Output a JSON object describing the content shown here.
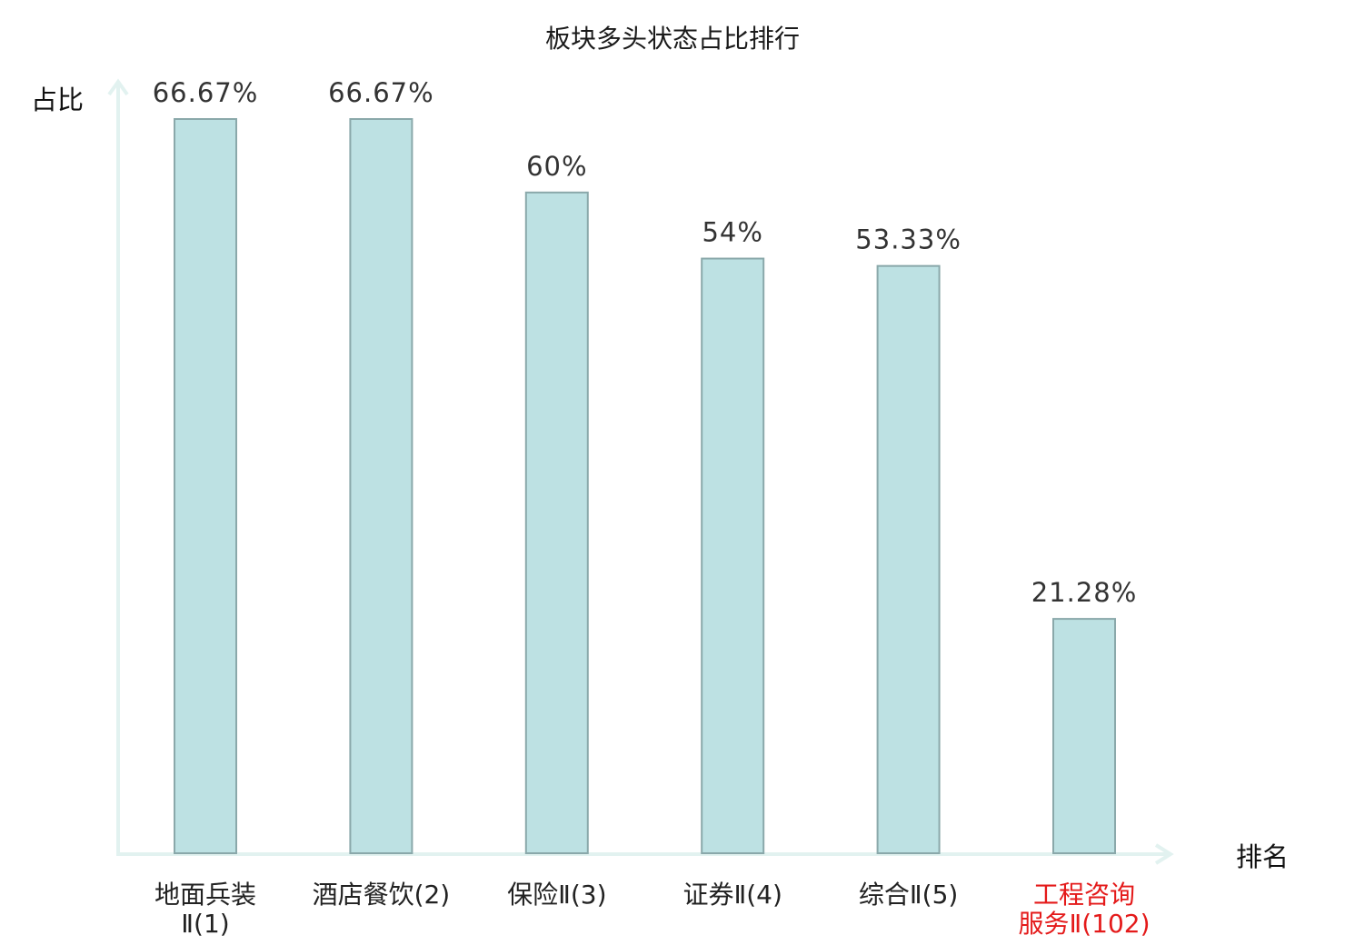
{
  "chart_data": {
    "type": "bar",
    "title": "板块多头状态占比排行",
    "ylabel": "占比",
    "xlabel": "排名",
    "ylim": [
      0,
      66.67
    ],
    "grid": false,
    "legend": "none",
    "categories": [
      {
        "lines": [
          "地面兵装",
          "Ⅱ(1)"
        ],
        "highlight": false
      },
      {
        "lines": [
          "酒店餐饮(2)"
        ],
        "highlight": false
      },
      {
        "lines": [
          "保险Ⅱ(3)"
        ],
        "highlight": false
      },
      {
        "lines": [
          "证券Ⅱ(4)"
        ],
        "highlight": false
      },
      {
        "lines": [
          "综合Ⅱ(5)"
        ],
        "highlight": false
      },
      {
        "lines": [
          "工程咨询",
          "服务Ⅱ(102)"
        ],
        "highlight": true
      }
    ],
    "values": [
      66.67,
      66.67,
      60,
      54,
      53.33,
      21.28
    ],
    "value_labels": [
      "66.67%",
      "66.67%",
      "60%",
      "54%",
      "53.33%",
      "21.28%"
    ]
  },
  "colors": {
    "bar_fill": "#bde1e3",
    "bar_stroke": "#8aa8aa",
    "axis": "#e2f2f0",
    "highlight_text": "#e41a1a"
  }
}
